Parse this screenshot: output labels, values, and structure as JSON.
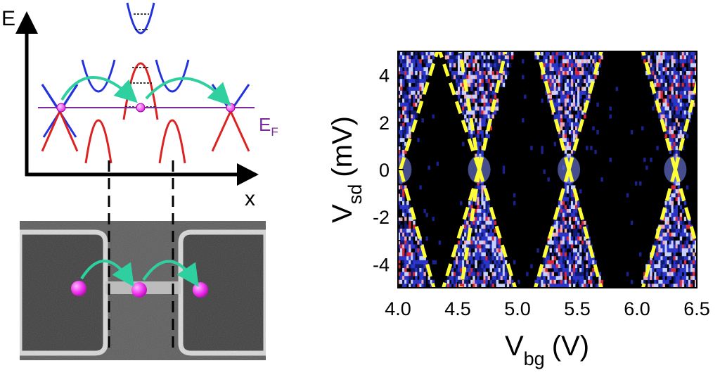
{
  "band_diagram": {
    "energy_axis_label": "E",
    "position_axis_label": "x",
    "fermi_label_main": "E",
    "fermi_label_sub": "F"
  },
  "sem_image": {
    "electron_count": 3
  },
  "chart_data": {
    "type": "heatmap",
    "title": "",
    "xlabel_main": "V",
    "xlabel_sub": "bg",
    "xlabel_unit": "(V)",
    "ylabel_main": "V",
    "ylabel_sub": "sd",
    "ylabel_unit": "(mV)",
    "xlim": [
      4.0,
      6.5
    ],
    "ylim": [
      -5,
      5
    ],
    "x_ticks": [
      4.0,
      4.5,
      5.0,
      5.5,
      6.0,
      6.5
    ],
    "x_tick_labels": [
      "4.0",
      "4.5",
      "5.0",
      "5.5",
      "6.0",
      "6.5"
    ],
    "y_ticks": [
      -4,
      -2,
      0,
      2,
      4
    ],
    "y_tick_labels": [
      "-4",
      "-2",
      "0",
      "2",
      "4"
    ],
    "grid": false,
    "colors": {
      "background": "#000000",
      "low": "#2a35c8",
      "mid": "#c8d0ff",
      "high": "#d8283a",
      "diamond_edges": "#ffff33"
    },
    "diamond_vertices_vbg": [
      4.02,
      4.68,
      5.43,
      6.32
    ],
    "diamond_edges": [
      {
        "x1": 4.02,
        "y1": 0,
        "x2": 4.33,
        "y2": 5
      },
      {
        "x1": 4.02,
        "y1": 0,
        "x2": 4.3,
        "y2": -5
      },
      {
        "x1": 4.68,
        "y1": 0,
        "x2": 4.35,
        "y2": 5
      },
      {
        "x1": 4.68,
        "y1": 0,
        "x2": 4.52,
        "y2": 5
      },
      {
        "x1": 4.68,
        "y1": 0,
        "x2": 4.9,
        "y2": 5
      },
      {
        "x1": 4.68,
        "y1": 0,
        "x2": 4.38,
        "y2": -5
      },
      {
        "x1": 4.68,
        "y1": 0,
        "x2": 4.53,
        "y2": -5
      },
      {
        "x1": 4.68,
        "y1": 0,
        "x2": 4.98,
        "y2": -5
      },
      {
        "x1": 5.43,
        "y1": 0,
        "x2": 5.17,
        "y2": 5
      },
      {
        "x1": 5.43,
        "y1": 0,
        "x2": 5.7,
        "y2": 5
      },
      {
        "x1": 5.43,
        "y1": 0,
        "x2": 5.15,
        "y2": -5
      },
      {
        "x1": 5.43,
        "y1": 0,
        "x2": 5.7,
        "y2": -5
      },
      {
        "x1": 6.32,
        "y1": 0,
        "x2": 6.05,
        "y2": 5
      },
      {
        "x1": 6.32,
        "y1": 0,
        "x2": 6.52,
        "y2": 4
      },
      {
        "x1": 6.32,
        "y1": 0,
        "x2": 6.05,
        "y2": -5
      },
      {
        "x1": 6.32,
        "y1": 0,
        "x2": 6.52,
        "y2": -3.6
      }
    ]
  }
}
